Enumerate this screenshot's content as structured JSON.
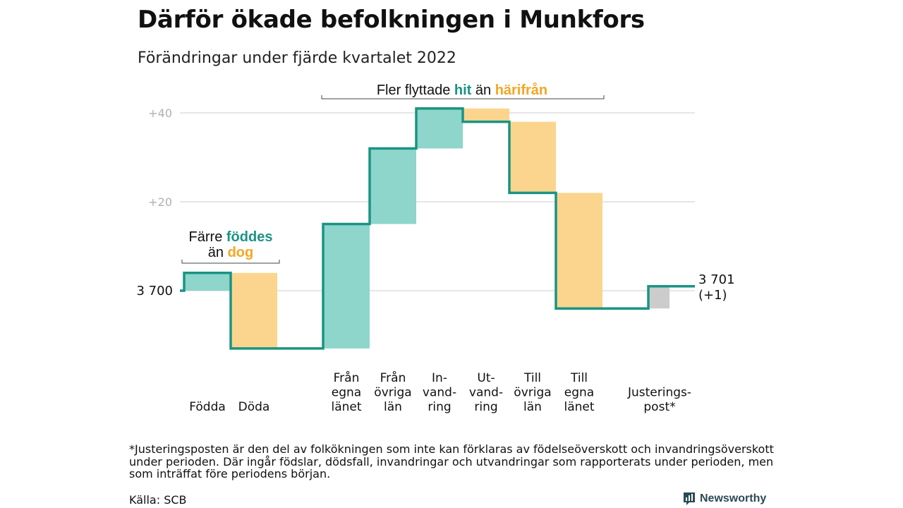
{
  "title": "Därför ökade befolkningen i Munkfors",
  "subtitle": "Förändringar under fjärde kvartalet 2022",
  "colors": {
    "increase_fill": "#8ed5cb",
    "decrease_fill": "#fbd58e",
    "adjust_fill": "#cccccc",
    "line": "#1a9484",
    "teal_text": "#1a9484",
    "orange_text": "#f5a623",
    "grid": "#dddddd",
    "tick": "#b0b0b0"
  },
  "chart_data": {
    "type": "waterfall",
    "start": {
      "label": "3 700",
      "value": 3700
    },
    "end": {
      "label": "3 701",
      "sub": "(+1)",
      "value": 3701
    },
    "y_ticks": [
      {
        "label": "+40",
        "value": 40
      },
      {
        "label": "+20",
        "value": 20
      }
    ],
    "ylim": [
      -15,
      42
    ],
    "steps": [
      {
        "label": [
          "Födda"
        ],
        "delta": 4,
        "kind": "increase"
      },
      {
        "label": [
          "Döda"
        ],
        "delta": -17,
        "kind": "decrease"
      },
      {
        "label": [
          "Från",
          "egna",
          "länet"
        ],
        "delta": 28,
        "kind": "increase"
      },
      {
        "label": [
          "Från",
          "övriga",
          "län"
        ],
        "delta": 17,
        "kind": "increase"
      },
      {
        "label": [
          "In-",
          "vand-",
          "ring"
        ],
        "delta": 9,
        "kind": "increase"
      },
      {
        "label": [
          "Ut-",
          "vand-",
          "ring"
        ],
        "delta": -3,
        "kind": "decrease"
      },
      {
        "label": [
          "Till",
          "övriga",
          "län"
        ],
        "delta": -16,
        "kind": "decrease"
      },
      {
        "label": [
          "Till",
          "egna",
          "länet"
        ],
        "delta": -26,
        "kind": "decrease"
      },
      {
        "label": [
          "Justerings-",
          "post*"
        ],
        "delta": 5,
        "kind": "adjust"
      }
    ],
    "annotations": [
      {
        "parts": [
          {
            "text": "Färre ",
            "color": "#111111",
            "bold": false
          },
          {
            "text": "föddes",
            "color": "#1a9484",
            "bold": true
          }
        ],
        "parts2": [
          {
            "text": "än ",
            "color": "#111111",
            "bold": false
          },
          {
            "text": "dog",
            "color": "#f5a623",
            "bold": true
          }
        ]
      },
      {
        "parts": [
          {
            "text": "Fler flyttade ",
            "color": "#111111",
            "bold": false
          },
          {
            "text": "hit",
            "color": "#1a9484",
            "bold": true
          },
          {
            "text": " än ",
            "color": "#111111",
            "bold": false
          },
          {
            "text": "härifrån",
            "color": "#f5a623",
            "bold": true
          }
        ]
      }
    ]
  },
  "footnote": "*Justeringsposten är den del av folkökningen som inte kan förklaras av födelseöverskott och invandringsöverskott under perioden. Där ingår födslar, dödsfall, invandringar och utvandringar som rapporterats under perioden, men som inträffat före periodens början.",
  "source": "Källa: SCB",
  "brand": {
    "name": "Newsworthy",
    "icon": "bar-chart-logo-icon"
  }
}
